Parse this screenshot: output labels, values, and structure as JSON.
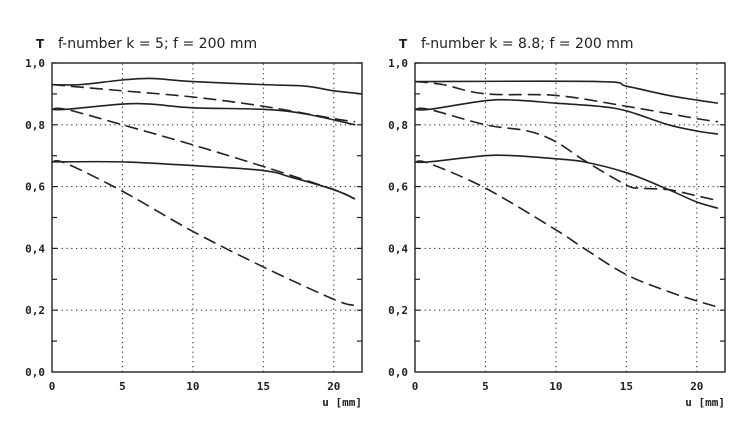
{
  "chart_data": [
    {
      "type": "line",
      "title": "f-number k = 5; f = 200 mm",
      "ylabel": "T",
      "xlabel": "u [mm]",
      "xlim": [
        0,
        22
      ],
      "ylim": [
        0,
        1
      ],
      "x_ticks": [
        "0",
        "5",
        "10",
        "15",
        "20"
      ],
      "x_tick_values": [
        0,
        5,
        10,
        15,
        20
      ],
      "y_ticks": [
        "0,0",
        "0,2",
        "0,4",
        "0,6",
        "0,8",
        "1,0"
      ],
      "y_tick_values": [
        0,
        0.2,
        0.4,
        0.6,
        0.8,
        1.0
      ],
      "grid": true,
      "series": [
        {
          "name": "solid-1",
          "style": "solid",
          "x": [
            0,
            2,
            5,
            7,
            10,
            15,
            18,
            20,
            22
          ],
          "y": [
            0.93,
            0.93,
            0.945,
            0.95,
            0.94,
            0.93,
            0.925,
            0.91,
            0.9
          ]
        },
        {
          "name": "dashed-1",
          "style": "dashed",
          "x": [
            0,
            5,
            10,
            15,
            20,
            21.5
          ],
          "y": [
            0.93,
            0.91,
            0.89,
            0.86,
            0.82,
            0.81
          ]
        },
        {
          "name": "solid-2",
          "style": "solid",
          "x": [
            0,
            1,
            5,
            7,
            10,
            15,
            18,
            21.5
          ],
          "y": [
            0.85,
            0.85,
            0.867,
            0.867,
            0.855,
            0.85,
            0.835,
            0.8
          ]
        },
        {
          "name": "dashed-2",
          "style": "dashed",
          "x": [
            0,
            1,
            5,
            10,
            15,
            20,
            21.5
          ],
          "y": [
            0.85,
            0.85,
            0.8,
            0.735,
            0.665,
            0.59,
            0.56
          ]
        },
        {
          "name": "solid-3",
          "style": "solid",
          "x": [
            0,
            5,
            10,
            15,
            17,
            20,
            21.5
          ],
          "y": [
            0.68,
            0.68,
            0.668,
            0.652,
            0.63,
            0.59,
            0.56
          ]
        },
        {
          "name": "dashed-3",
          "style": "dashed",
          "x": [
            0,
            1,
            5,
            10,
            15,
            20,
            21.5
          ],
          "y": [
            0.68,
            0.675,
            0.585,
            0.455,
            0.34,
            0.235,
            0.215
          ]
        }
      ]
    },
    {
      "type": "line",
      "title": "f-number k = 8.8; f = 200 mm",
      "ylabel": "T",
      "xlabel": "u [mm]",
      "xlim": [
        0,
        22
      ],
      "ylim": [
        0,
        1
      ],
      "x_ticks": [
        "0",
        "5",
        "10",
        "15",
        "20"
      ],
      "x_tick_values": [
        0,
        5,
        10,
        15,
        20
      ],
      "y_ticks": [
        "0,0",
        "0,2",
        "0,4",
        "0,6",
        "0,8",
        "1,0"
      ],
      "y_tick_values": [
        0,
        0.2,
        0.4,
        0.6,
        0.8,
        1.0
      ],
      "grid": true,
      "series": [
        {
          "name": "solid-1",
          "style": "solid",
          "x": [
            0,
            13,
            15,
            18,
            20,
            21.5
          ],
          "y": [
            0.94,
            0.94,
            0.925,
            0.895,
            0.88,
            0.87
          ]
        },
        {
          "name": "dashed-1",
          "style": "dashed",
          "x": [
            0,
            2,
            5,
            10,
            15,
            20,
            21.5
          ],
          "y": [
            0.94,
            0.93,
            0.9,
            0.895,
            0.86,
            0.82,
            0.81
          ]
        },
        {
          "name": "solid-2",
          "style": "solid",
          "x": [
            0,
            1,
            5,
            7,
            10,
            13,
            15,
            18,
            20,
            21.5
          ],
          "y": [
            0.85,
            0.85,
            0.878,
            0.88,
            0.87,
            0.86,
            0.845,
            0.8,
            0.78,
            0.77
          ]
        },
        {
          "name": "dashed-2",
          "style": "dashed",
          "x": [
            0,
            1,
            5,
            8,
            10,
            12,
            15,
            16,
            18,
            20,
            21.5
          ],
          "y": [
            0.85,
            0.85,
            0.8,
            0.78,
            0.745,
            0.685,
            0.605,
            0.595,
            0.59,
            0.57,
            0.555
          ]
        },
        {
          "name": "solid-3",
          "style": "solid",
          "x": [
            0,
            1,
            5,
            7,
            10,
            12,
            15,
            18,
            20,
            21.5
          ],
          "y": [
            0.68,
            0.68,
            0.7,
            0.7,
            0.69,
            0.68,
            0.645,
            0.59,
            0.55,
            0.53
          ]
        },
        {
          "name": "dashed-3",
          "style": "dashed",
          "x": [
            0,
            1,
            5,
            10,
            12,
            15,
            18,
            20,
            21.5
          ],
          "y": [
            0.68,
            0.675,
            0.595,
            0.46,
            0.4,
            0.315,
            0.26,
            0.23,
            0.21
          ]
        }
      ]
    }
  ]
}
